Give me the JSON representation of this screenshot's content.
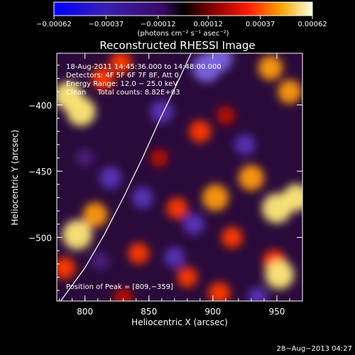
{
  "chart_data": {
    "type": "heatmap",
    "title": "Reconstructed RHESSI Image",
    "xlabel": "Heliocentric X (arcsec)",
    "ylabel": "Heliocentric Y (arcsec)",
    "xlim": [
      778,
      970
    ],
    "ylim": [
      -548,
      -361
    ],
    "xticks": [
      800,
      850,
      900,
      950
    ],
    "yticks": [
      -400,
      -450,
      -500
    ],
    "xtick_labels": [
      "800",
      "850",
      "900",
      "950"
    ],
    "ytick_labels": [
      "−400",
      "−450",
      "−500"
    ],
    "colorbar": {
      "range": [
        -0.00062,
        0.00062
      ],
      "ticks": [
        -0.00062,
        -0.00037,
        -0.00012,
        0.00012,
        0.00037,
        0.00062
      ],
      "tick_labels": [
        "−0.00062",
        "−0.00037",
        "−0.00012",
        "0.00012",
        "0.00037",
        "0.00062"
      ],
      "unit_label": "(photons cm⁻² s⁻¹ asec⁻²)"
    },
    "annotations": [
      "18-Aug-2011 14:45:36.000 to 14:48:00.000",
      "Detectors: 4F 5F 6F 7F 8F, Att 0",
      "Energy Range: 12.0 − 25.0 keV",
      "Clean     Total counts: 8.82E+03"
    ],
    "peak_label": "Position of Peak = [809,−359]",
    "limb_curve": [
      [
        781,
        -548
      ],
      [
        800,
        -523
      ],
      [
        815,
        -498
      ],
      [
        830,
        -470
      ],
      [
        845,
        -440
      ],
      [
        858,
        -412
      ],
      [
        870,
        -388
      ],
      [
        883,
        -361
      ]
    ],
    "intensity_blobs": [
      {
        "x": 787,
        "y": -393,
        "v": 0.9
      },
      {
        "x": 797,
        "y": -405,
        "v": 0.95
      },
      {
        "x": 814,
        "y": -380,
        "v": 0.6
      },
      {
        "x": 828,
        "y": -368,
        "v": 0.55
      },
      {
        "x": 794,
        "y": -498,
        "v": 1.0
      },
      {
        "x": 808,
        "y": -483,
        "v": 0.7
      },
      {
        "x": 784,
        "y": -523,
        "v": 0.55
      },
      {
        "x": 842,
        "y": -512,
        "v": 0.5
      },
      {
        "x": 858,
        "y": -440,
        "v": 0.3
      },
      {
        "x": 872,
        "y": -478,
        "v": 0.5
      },
      {
        "x": 890,
        "y": -420,
        "v": 0.55
      },
      {
        "x": 910,
        "y": -408,
        "v": 0.35
      },
      {
        "x": 945,
        "y": -372,
        "v": 0.7
      },
      {
        "x": 960,
        "y": -390,
        "v": 0.65
      },
      {
        "x": 930,
        "y": -455,
        "v": 0.75
      },
      {
        "x": 950,
        "y": -478,
        "v": 1.0
      },
      {
        "x": 965,
        "y": -470,
        "v": 0.85
      },
      {
        "x": 902,
        "y": -470,
        "v": 0.8
      },
      {
        "x": 915,
        "y": -500,
        "v": 0.5
      },
      {
        "x": 948,
        "y": -518,
        "v": 0.6
      },
      {
        "x": 952,
        "y": -528,
        "v": 0.95
      },
      {
        "x": 880,
        "y": -530,
        "v": 0.45
      },
      {
        "x": 905,
        "y": -542,
        "v": 0.55
      },
      {
        "x": 830,
        "y": -545,
        "v": 0.35
      },
      {
        "x": 845,
        "y": -470,
        "v": -0.5
      },
      {
        "x": 860,
        "y": -405,
        "v": -0.6
      },
      {
        "x": 895,
        "y": -372,
        "v": -0.95
      },
      {
        "x": 905,
        "y": -365,
        "v": -0.8
      },
      {
        "x": 925,
        "y": -430,
        "v": -0.45
      },
      {
        "x": 820,
        "y": -455,
        "v": -0.55
      },
      {
        "x": 885,
        "y": -490,
        "v": -0.5
      },
      {
        "x": 870,
        "y": -515,
        "v": -0.45
      },
      {
        "x": 935,
        "y": -545,
        "v": -0.4
      },
      {
        "x": 812,
        "y": -518,
        "v": -0.35
      },
      {
        "x": 800,
        "y": -440,
        "v": -0.3
      }
    ]
  },
  "footer": {
    "timestamp": "28−Aug−2013 04:27"
  }
}
